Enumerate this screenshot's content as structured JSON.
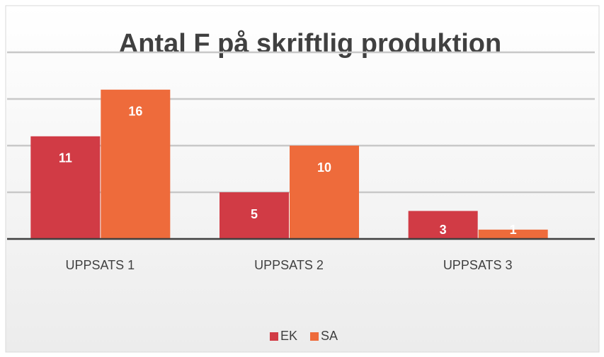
{
  "chart_data": {
    "type": "bar",
    "title": "Antal F på skriftlig produktion",
    "categories": [
      "UPPSATS 1",
      "UPPSATS 2",
      "UPPSATS 3"
    ],
    "series": [
      {
        "name": "EK",
        "color": "#d13b45",
        "values": [
          11,
          5,
          3
        ]
      },
      {
        "name": "SA",
        "color": "#ee6b3b",
        "values": [
          16,
          10,
          1
        ]
      }
    ],
    "ylim": [
      0,
      20
    ],
    "yticks": [
      0,
      5,
      10,
      15,
      20
    ],
    "grid": true,
    "legend": "bottom"
  }
}
